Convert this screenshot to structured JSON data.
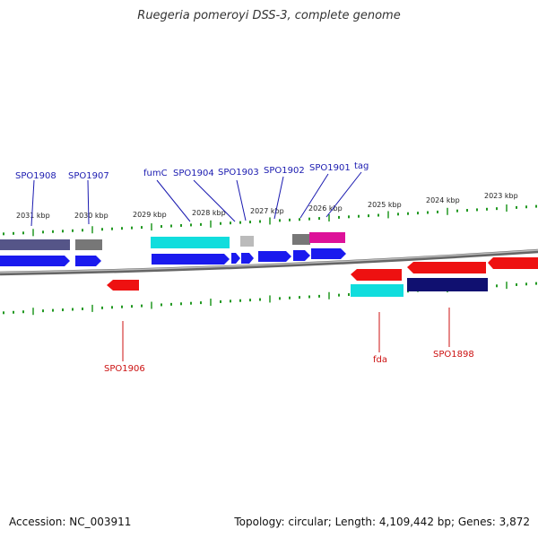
{
  "title": "Ruegeria pomeroyi DSS-3, complete genome",
  "footer": {
    "accession": "Accession: NC_003911",
    "topology": "Topology: circular; Length: 4,109,442 bp; Genes: 3,872"
  },
  "colors": {
    "forward": "#1a1aee",
    "reverse": "#ee1111",
    "label_top": "#1a1ab0",
    "label_bottom": "#cc1111",
    "tick": "#229922",
    "backbone": "#888888",
    "cyan": "#11dddd",
    "slate": "#555588",
    "gray": "#777777",
    "lightgray": "#bbbbbb",
    "magenta": "#dd1199",
    "navy": "#101070"
  },
  "kbp_ticks": [
    "2031 kbp",
    "2030 kbp",
    "2029 kbp",
    "2028 kbp",
    "2027 kbp",
    "2026 kbp",
    "2025 kbp",
    "2024 kbp",
    "2023 kbp"
  ],
  "gene_labels_top": [
    "SPO1908",
    "SPO1907",
    "fumC",
    "SPO1904",
    "SPO1903",
    "SPO1902",
    "SPO1901",
    "tag"
  ],
  "gene_labels_bottom": [
    "SPO1906",
    "fda",
    "SPO1898"
  ]
}
